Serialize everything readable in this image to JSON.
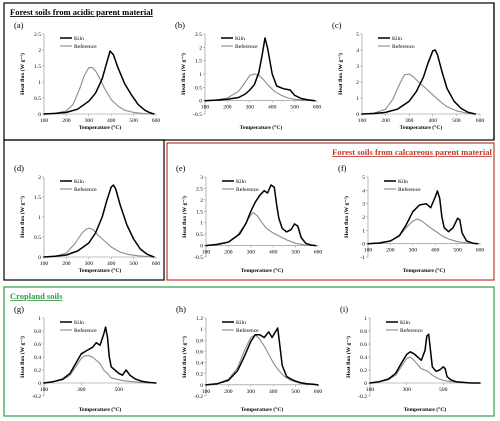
{
  "groups": [
    {
      "title": "Forest soils from acidic parent material",
      "color": "#000000"
    },
    {
      "title": "Forest soils from calcareous parent material",
      "color": "#c0392b"
    },
    {
      "title": "Cropland soils",
      "color": "#2e9e45"
    }
  ],
  "legend": {
    "kiln": "Kiln",
    "reference": "Reference"
  },
  "series_colors": {
    "kiln": "#000000",
    "reference": "#8c8c8c"
  },
  "chart_data": [
    {
      "type": "line",
      "panel": "(a)",
      "group": "Forest soils from acidic parent material",
      "xlabel": "Temperature (°C)",
      "ylabel": "Heat flux (W g⁻¹)",
      "xlim": [
        100,
        600
      ],
      "xticks": [
        100,
        200,
        300,
        400,
        500,
        600
      ],
      "ylim": [
        0,
        2.5
      ],
      "yticks": [
        0,
        0.5,
        1,
        1.5,
        2,
        2.5
      ],
      "series": [
        {
          "name": "Kiln",
          "x": [
            100,
            150,
            200,
            250,
            300,
            330,
            360,
            380,
            395,
            410,
            430,
            460,
            490,
            520,
            550,
            570,
            590
          ],
          "y": [
            0,
            0.02,
            0.05,
            0.15,
            0.4,
            0.65,
            1.1,
            1.6,
            1.97,
            1.85,
            1.45,
            0.95,
            0.6,
            0.3,
            0.12,
            0.05,
            0
          ]
        },
        {
          "name": "Reference",
          "x": [
            100,
            150,
            200,
            230,
            260,
            280,
            300,
            315,
            330,
            350,
            370,
            400,
            430,
            460,
            500,
            540,
            580
          ],
          "y": [
            0,
            0.02,
            0.1,
            0.3,
            0.8,
            1.2,
            1.45,
            1.45,
            1.35,
            1.1,
            0.8,
            0.45,
            0.25,
            0.12,
            0.05,
            0.02,
            0
          ]
        }
      ]
    },
    {
      "type": "line",
      "panel": "(b)",
      "group": "Forest soils from acidic parent material",
      "xlabel": "Temperature (°C)",
      "ylabel": "Heat flux (W g⁻¹)",
      "xlim": [
        100,
        600
      ],
      "xticks": [
        100,
        200,
        300,
        400,
        500,
        600
      ],
      "ylim": [
        -0.5,
        2.5
      ],
      "yticks": [
        -0.5,
        0,
        0.5,
        1,
        1.5,
        2,
        2.5
      ],
      "series": [
        {
          "name": "Kiln",
          "x": [
            100,
            150,
            200,
            250,
            280,
            300,
            320,
            340,
            355,
            368,
            380,
            400,
            420,
            450,
            480,
            500,
            530,
            560,
            590
          ],
          "y": [
            0,
            0.02,
            0.05,
            0.12,
            0.25,
            0.4,
            0.6,
            1.05,
            1.7,
            2.35,
            1.95,
            1.0,
            0.55,
            0.45,
            0.4,
            0.2,
            0.08,
            0.03,
            0
          ]
        },
        {
          "name": "Reference",
          "x": [
            100,
            150,
            200,
            250,
            280,
            300,
            320,
            340,
            360,
            380,
            410,
            440,
            470,
            500,
            540,
            580
          ],
          "y": [
            0,
            0.02,
            0.1,
            0.35,
            0.7,
            0.95,
            1.0,
            0.95,
            0.8,
            0.6,
            0.35,
            0.2,
            0.1,
            0.05,
            0.02,
            0
          ]
        }
      ]
    },
    {
      "type": "line",
      "panel": "(c)",
      "group": "Forest soils from acidic parent material",
      "xlabel": "Temperature (°C)",
      "ylabel": "Heat flux (W g⁻¹)",
      "xlim": [
        100,
        600
      ],
      "xticks": [
        100,
        200,
        300,
        400,
        500,
        600
      ],
      "ylim": [
        0,
        5
      ],
      "yticks": [
        0,
        1,
        2,
        3,
        4,
        5
      ],
      "series": [
        {
          "name": "Kiln",
          "x": [
            100,
            150,
            200,
            250,
            300,
            330,
            360,
            380,
            400,
            410,
            420,
            440,
            460,
            490,
            520,
            550,
            580
          ],
          "y": [
            0,
            0.03,
            0.1,
            0.3,
            0.8,
            1.4,
            2.3,
            3.2,
            3.95,
            4.0,
            3.7,
            2.6,
            1.6,
            0.8,
            0.35,
            0.1,
            0
          ]
        },
        {
          "name": "Reference",
          "x": [
            100,
            150,
            200,
            230,
            260,
            280,
            300,
            320,
            340,
            370,
            400,
            430,
            460,
            500,
            540,
            580
          ],
          "y": [
            0,
            0.05,
            0.3,
            0.9,
            1.9,
            2.45,
            2.5,
            2.3,
            2.0,
            1.6,
            1.2,
            0.8,
            0.45,
            0.2,
            0.07,
            0
          ]
        }
      ]
    },
    {
      "type": "line",
      "panel": "(d)",
      "group": "Forest soils from acidic parent material",
      "xlabel": "Temperature (°C)",
      "ylabel": "Heat flux (W g⁻¹)",
      "xlim": [
        100,
        600
      ],
      "xticks": [
        100,
        200,
        300,
        400,
        500,
        600
      ],
      "ylim": [
        0,
        2
      ],
      "yticks": [
        0,
        0.5,
        1,
        1.5,
        2
      ],
      "series": [
        {
          "name": "Kiln",
          "x": [
            100,
            150,
            200,
            250,
            300,
            330,
            360,
            380,
            400,
            410,
            420,
            440,
            470,
            500,
            530,
            560,
            590
          ],
          "y": [
            0,
            0.02,
            0.05,
            0.15,
            0.35,
            0.6,
            1.0,
            1.4,
            1.75,
            1.8,
            1.7,
            1.3,
            0.8,
            0.45,
            0.2,
            0.07,
            0
          ]
        },
        {
          "name": "Reference",
          "x": [
            100,
            150,
            200,
            240,
            270,
            290,
            305,
            320,
            340,
            370,
            400,
            440,
            480,
            520,
            560,
            590
          ],
          "y": [
            0,
            0.02,
            0.1,
            0.35,
            0.6,
            0.7,
            0.72,
            0.68,
            0.55,
            0.4,
            0.25,
            0.12,
            0.06,
            0.03,
            0.01,
            0
          ]
        }
      ]
    },
    {
      "type": "line",
      "panel": "(e)",
      "group": "Forest soils from calcareous parent material",
      "xlabel": "Temperature (°C)",
      "ylabel": "Heat flux (W g⁻¹)",
      "xlim": [
        100,
        600
      ],
      "xticks": [
        100,
        200,
        300,
        400,
        500,
        600
      ],
      "ylim": [
        -0.5,
        3
      ],
      "yticks": [
        -0.5,
        0,
        0.5,
        1,
        1.5,
        2,
        2.5,
        3
      ],
      "series": [
        {
          "name": "Kiln",
          "x": [
            100,
            150,
            200,
            250,
            280,
            300,
            320,
            340,
            360,
            375,
            390,
            405,
            415,
            425,
            440,
            460,
            480,
            495,
            510,
            525,
            545,
            570,
            590
          ],
          "y": [
            0,
            0.05,
            0.15,
            0.5,
            1.0,
            1.5,
            1.9,
            2.2,
            2.4,
            2.3,
            2.65,
            2.55,
            1.8,
            1.2,
            0.75,
            0.6,
            0.7,
            0.95,
            0.85,
            0.35,
            0.1,
            0.02,
            0
          ]
        },
        {
          "name": "Reference",
          "x": [
            100,
            150,
            200,
            240,
            270,
            290,
            310,
            330,
            350,
            370,
            400,
            430,
            460,
            500,
            540,
            580
          ],
          "y": [
            0,
            0.03,
            0.15,
            0.45,
            0.85,
            1.2,
            1.45,
            1.3,
            1.0,
            0.75,
            0.55,
            0.4,
            0.25,
            0.1,
            0.03,
            0
          ]
        }
      ]
    },
    {
      "type": "line",
      "panel": "(f)",
      "group": "Forest soils from calcareous parent material",
      "xlabel": "Temperature (°C)",
      "ylabel": "Heat flux (W g⁻¹)",
      "xlim": [
        100,
        600
      ],
      "xticks": [
        100,
        200,
        300,
        400,
        500,
        600
      ],
      "ylim": [
        -1,
        5
      ],
      "yticks": [
        -1,
        0,
        1,
        2,
        3,
        4,
        5
      ],
      "series": [
        {
          "name": "Kiln",
          "x": [
            100,
            150,
            200,
            240,
            270,
            300,
            330,
            360,
            380,
            400,
            410,
            420,
            430,
            440,
            460,
            480,
            500,
            510,
            520,
            540,
            570,
            590
          ],
          "y": [
            0,
            0.05,
            0.2,
            0.6,
            1.4,
            2.4,
            2.9,
            3.0,
            2.7,
            3.5,
            3.95,
            3.4,
            2.0,
            1.2,
            0.9,
            1.2,
            1.9,
            1.8,
            0.8,
            0.2,
            0.03,
            0
          ]
        },
        {
          "name": "Reference",
          "x": [
            100,
            150,
            200,
            240,
            270,
            300,
            320,
            340,
            370,
            400,
            430,
            460,
            500,
            540,
            580
          ],
          "y": [
            0,
            0.05,
            0.2,
            0.6,
            1.2,
            1.7,
            1.85,
            1.7,
            1.3,
            0.95,
            0.6,
            0.35,
            0.15,
            0.05,
            0
          ]
        }
      ]
    },
    {
      "type": "line",
      "panel": "(g)",
      "group": "Cropland soils",
      "xlabel": "Temperature (°C)",
      "ylabel": "Heat flux (W g⁻¹)",
      "xlim": [
        100,
        700
      ],
      "xticks": [
        100,
        300,
        500
      ],
      "ylim": [
        -0.2,
        1
      ],
      "yticks": [
        -0.2,
        0,
        0.2,
        0.4,
        0.6,
        0.8,
        1
      ],
      "series": [
        {
          "name": "Kiln",
          "x": [
            100,
            150,
            200,
            240,
            270,
            300,
            330,
            360,
            380,
            400,
            420,
            430,
            440,
            450,
            460,
            480,
            500,
            520,
            540,
            560,
            590,
            620,
            660,
            700
          ],
          "y": [
            0,
            0.02,
            0.06,
            0.15,
            0.3,
            0.45,
            0.5,
            0.55,
            0.62,
            0.58,
            0.75,
            0.86,
            0.7,
            0.4,
            0.25,
            0.2,
            0.15,
            0.12,
            0.2,
            0.12,
            0.06,
            0.03,
            0.01,
            0
          ]
        },
        {
          "name": "Reference",
          "x": [
            100,
            150,
            200,
            240,
            270,
            300,
            320,
            340,
            360,
            380,
            400,
            420,
            440,
            460,
            500,
            540,
            580,
            620,
            660,
            700
          ],
          "y": [
            0,
            0.02,
            0.05,
            0.12,
            0.25,
            0.38,
            0.42,
            0.42,
            0.4,
            0.35,
            0.3,
            0.2,
            0.15,
            0.08,
            0.05,
            0.03,
            0.02,
            0.01,
            0,
            0
          ]
        }
      ]
    },
    {
      "type": "line",
      "panel": "(h)",
      "group": "Cropland soils",
      "xlabel": "Temperature (°C)",
      "ylabel": "Heat flux (W g⁻¹)",
      "xlim": [
        100,
        600
      ],
      "xticks": [
        100,
        200,
        300,
        400,
        500,
        600
      ],
      "ylim": [
        -0.2,
        1.2
      ],
      "yticks": [
        -0.2,
        0,
        0.2,
        0.4,
        0.6,
        0.8,
        1,
        1.2
      ],
      "series": [
        {
          "name": "Kiln",
          "x": [
            100,
            150,
            200,
            240,
            270,
            300,
            320,
            340,
            360,
            380,
            395,
            410,
            420,
            430,
            440,
            460,
            490,
            520,
            550,
            580,
            600
          ],
          "y": [
            0,
            0.02,
            0.08,
            0.25,
            0.5,
            0.78,
            0.9,
            0.9,
            0.85,
            0.95,
            0.85,
            0.95,
            1.02,
            0.7,
            0.35,
            0.15,
            0.08,
            0.04,
            0.02,
            0.01,
            0
          ]
        },
        {
          "name": "Reference",
          "x": [
            100,
            150,
            200,
            240,
            270,
            300,
            320,
            340,
            360,
            380,
            400,
            420,
            450,
            480,
            520,
            560,
            600
          ],
          "y": [
            0,
            0.02,
            0.1,
            0.3,
            0.6,
            0.85,
            0.9,
            0.82,
            0.7,
            0.55,
            0.4,
            0.28,
            0.15,
            0.08,
            0.03,
            0.01,
            0
          ]
        }
      ]
    },
    {
      "type": "line",
      "panel": "(i)",
      "group": "Cropland soils",
      "xlabel": "Temperature (°C)",
      "ylabel": "Heat flux (W g⁻¹)",
      "xlim": [
        100,
        700
      ],
      "xticks": [
        100,
        300,
        500
      ],
      "ylim": [
        -0.2,
        1
      ],
      "yticks": [
        -0.2,
        0,
        0.2,
        0.4,
        0.6,
        0.8,
        1
      ],
      "series": [
        {
          "name": "Kiln",
          "x": [
            100,
            150,
            200,
            240,
            270,
            300,
            320,
            340,
            360,
            380,
            400,
            410,
            420,
            430,
            440,
            460,
            480,
            500,
            510,
            520,
            540,
            570,
            610,
            650,
            700
          ],
          "y": [
            0,
            0.02,
            0.06,
            0.15,
            0.3,
            0.44,
            0.48,
            0.45,
            0.4,
            0.35,
            0.5,
            0.72,
            0.75,
            0.5,
            0.25,
            0.18,
            0.2,
            0.25,
            0.22,
            0.1,
            0.05,
            0.02,
            0.01,
            0,
            0
          ]
        },
        {
          "name": "Reference",
          "x": [
            100,
            150,
            200,
            240,
            270,
            300,
            320,
            340,
            360,
            380,
            400,
            420,
            440,
            470,
            500,
            540,
            580,
            620,
            660,
            700
          ],
          "y": [
            0,
            0.02,
            0.05,
            0.12,
            0.25,
            0.38,
            0.4,
            0.35,
            0.28,
            0.22,
            0.2,
            0.17,
            0.12,
            0.07,
            0.04,
            0.02,
            0.01,
            0,
            0,
            0
          ]
        }
      ]
    }
  ]
}
